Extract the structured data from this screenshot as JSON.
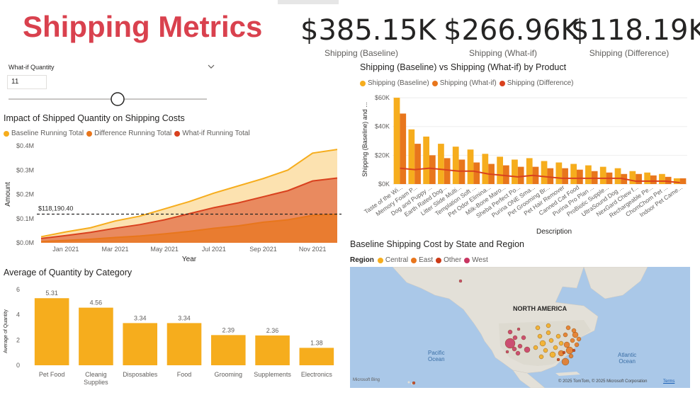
{
  "page": {
    "title": "Shipping Metrics"
  },
  "kpis": [
    {
      "value": "$385.15K",
      "label": "Shipping (Baseline)"
    },
    {
      "value": "$266.96K",
      "label": "Shipping (What-if)"
    },
    {
      "value": "$118.19K",
      "label": "Shipping (Difference)"
    }
  ],
  "slicer": {
    "label": "What-if Quantity",
    "value": "11",
    "slider_fraction": 0.55
  },
  "colors": {
    "baseline": "#f6ad1d",
    "difference": "#e8761c",
    "whatif": "#d9411e",
    "other": "#cc3a16",
    "west": "#c83561",
    "central": "#f6ad1d",
    "east": "#e8761c",
    "title": "#d9414e"
  },
  "chart_data": [
    {
      "type": "area",
      "title": "Impact of Shipped Quantity on Shipping Costs",
      "xlabel": "Year",
      "ylabel": "Amount",
      "x_ticks": [
        "Jan 2021",
        "Mar 2021",
        "May 2021",
        "Jul 2021",
        "Sep 2021",
        "Nov 2021"
      ],
      "y_ticks": [
        "$0.0M",
        "$0.1M",
        "$0.2M",
        "$0.3M",
        "$0.4M"
      ],
      "ylim": [
        0,
        0.4
      ],
      "x": [
        "Dec 2020",
        "Jan 2021",
        "Feb 2021",
        "Mar 2021",
        "Apr 2021",
        "May 2021",
        "Jun 2021",
        "Jul 2021",
        "Aug 2021",
        "Sep 2021",
        "Oct 2021",
        "Nov 2021",
        "Dec 2021"
      ],
      "series": [
        {
          "name": "Baseline Running Total",
          "values": [
            0.025,
            0.045,
            0.062,
            0.09,
            0.11,
            0.14,
            0.17,
            0.205,
            0.235,
            0.265,
            0.3,
            0.37,
            0.385
          ]
        },
        {
          "name": "Difference Running Total",
          "values": [
            0.005,
            0.01,
            0.015,
            0.022,
            0.028,
            0.037,
            0.047,
            0.06,
            0.07,
            0.085,
            0.095,
            0.113,
            0.118
          ]
        },
        {
          "name": "What-if Running Total",
          "values": [
            0.018,
            0.03,
            0.043,
            0.06,
            0.075,
            0.095,
            0.12,
            0.145,
            0.165,
            0.19,
            0.215,
            0.255,
            0.267
          ]
        }
      ],
      "reference_line": {
        "label": "$118,190.40",
        "value": 0.11819
      },
      "legend": "top-left"
    },
    {
      "type": "bar",
      "title": "Shipping (Baseline) vs Shipping (What-if) by Product",
      "xlabel": "Description",
      "ylabel": "Shipping (Baseline) and ...",
      "y_ticks": [
        "$0K",
        "$20K",
        "$40K",
        "$60K"
      ],
      "ylim": [
        0,
        62
      ],
      "categories": [
        "Taste of the Wi...",
        "Memory Foam P...",
        "Dog and Puppy ...",
        "Earth Rated Dog...",
        "Litter Slide Multi...",
        "Templation Soft ...",
        "Pet Odor Elimina...",
        "Milk-Bone Maro...",
        "Sheba Perfect Po...",
        "Purina ONE Sma...",
        "Pet Grooming Br...",
        "Pet Hair Remover",
        "Canned Cat Food",
        "Purina Pro Plan ...",
        "ProBiotic Supple...",
        "UltraSound Dog ...",
        "NexGard Chew f...",
        "Rechargeable Pe...",
        "ChomChom Pet ...",
        "Indoor Pet Came..."
      ],
      "series": [
        {
          "name": "Shipping (Baseline)",
          "values": [
            60,
            38,
            33,
            28,
            26,
            24,
            21,
            19,
            17,
            18,
            16,
            15,
            14,
            13,
            12,
            11,
            9,
            8,
            7,
            4
          ]
        },
        {
          "name": "Shipping (What-if)",
          "values": [
            49,
            28,
            20,
            18,
            17,
            15,
            14,
            13,
            12,
            12,
            11,
            11,
            10,
            9,
            8,
            7,
            7,
            6,
            5,
            4
          ]
        },
        {
          "name": "Shipping (Difference)",
          "values": [
            11,
            10,
            11,
            10,
            9,
            9,
            7,
            6,
            5,
            6,
            5,
            4,
            4,
            4,
            4,
            4,
            2,
            2,
            2,
            1
          ]
        }
      ],
      "legend": "top-left"
    },
    {
      "type": "bar",
      "title": "Average of Quantity by Category",
      "ylabel": "Average of Quantity",
      "y_ticks": [
        "0",
        "2",
        "4",
        "6"
      ],
      "ylim": [
        0,
        6.5
      ],
      "categories": [
        "Pet Food",
        "Cleanig Supplies",
        "Disposables",
        "Food",
        "Grooming",
        "Supplements",
        "Electronics"
      ],
      "values": [
        5.31,
        4.56,
        3.34,
        3.34,
        2.39,
        2.36,
        1.38
      ],
      "data_labels": [
        "5.31",
        "4.56",
        "3.34",
        "3.34",
        "2.39",
        "2.36",
        "1.38"
      ]
    }
  ],
  "map": {
    "title": "Baseline Shipping Cost by State and Region",
    "legend_title": "Region",
    "legend": [
      {
        "name": "Central",
        "color": "#f6ad1d"
      },
      {
        "name": "East",
        "color": "#e8761c"
      },
      {
        "name": "Other",
        "color": "#cc3a16"
      },
      {
        "name": "West",
        "color": "#c83561"
      }
    ],
    "continent_label": "NORTH AMERICA",
    "ocean_labels": [
      "Pacific\nOcean",
      "Atlantic\nOcean"
    ],
    "pacific_label": "Pacific",
    "pacific_label2": "Ocean",
    "atlantic_label": "Atlantic",
    "atlantic_label2": "Ocean",
    "provider": "Microsoft Bing",
    "copyright": "© 2025 TomTom, © 2025 Microsoft Corporation",
    "terms": "Terms"
  }
}
